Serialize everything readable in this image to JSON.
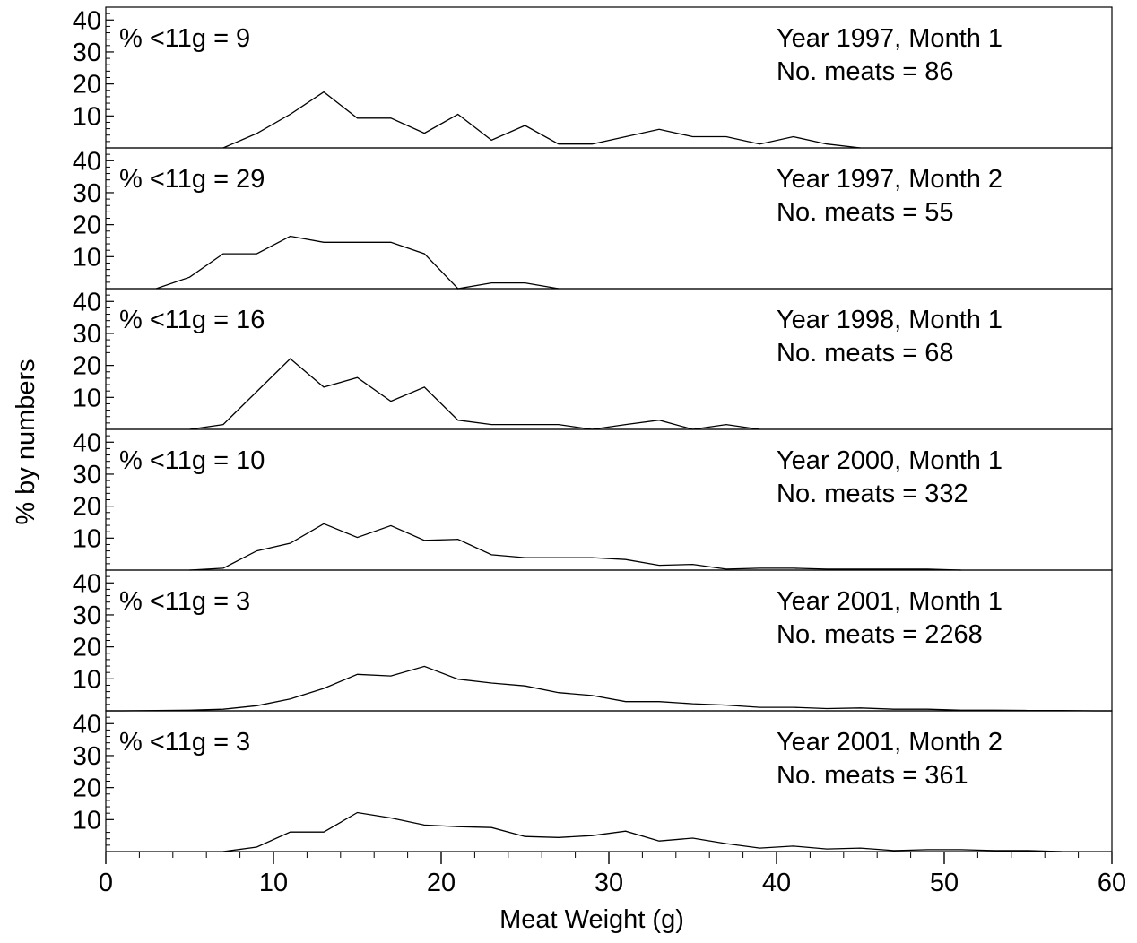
{
  "chart_data": {
    "type": "line",
    "title": "",
    "xlabel": "Meat Weight (g)",
    "ylabel": "% by numbers",
    "xlim": [
      0,
      60
    ],
    "xticks": [
      0,
      10,
      20,
      30,
      40,
      50,
      60
    ],
    "ylim": [
      0,
      44
    ],
    "yticks": [
      10,
      20,
      30,
      40
    ],
    "grid": false,
    "legend": "none",
    "line_color": "#000000",
    "x": [
      0,
      1,
      3,
      5,
      7,
      9,
      11,
      13,
      15,
      17,
      19,
      21,
      23,
      25,
      27,
      29,
      31,
      33,
      35,
      37,
      39,
      41,
      43,
      45,
      47,
      49,
      51,
      53,
      55,
      57,
      59,
      60
    ],
    "panels": [
      {
        "left_label": "% <11g = 9",
        "right_label_1": "Year 1997, Month 1",
        "right_label_2": "No. meats = 86",
        "values": [
          null,
          null,
          null,
          null,
          0,
          4.5,
          10.5,
          17.5,
          9.3,
          9.3,
          4.6,
          10.5,
          2.4,
          7,
          1.2,
          1.2,
          3.5,
          5.8,
          3.5,
          3.5,
          1.2,
          3.5,
          1.2,
          0,
          null,
          null,
          null,
          null,
          null,
          null,
          null,
          null
        ]
      },
      {
        "left_label": "% <11g = 29",
        "right_label_1": "Year 1997, Month 2",
        "right_label_2": "No. meats = 55",
        "values": [
          null,
          null,
          0,
          3.6,
          10.9,
          10.9,
          16.4,
          14.5,
          14.5,
          14.5,
          10.9,
          0,
          1.8,
          1.8,
          0,
          null,
          null,
          null,
          null,
          null,
          null,
          null,
          null,
          null,
          null,
          null,
          null,
          null,
          null,
          null,
          null,
          null
        ]
      },
      {
        "left_label": "% <11g = 16",
        "right_label_1": "Year 1998, Month 1",
        "right_label_2": "No. meats = 68",
        "values": [
          null,
          null,
          null,
          0,
          1.5,
          11.8,
          22.1,
          13.2,
          16.2,
          8.8,
          13.2,
          2.9,
          1.5,
          1.5,
          1.5,
          0,
          1.5,
          2.9,
          0,
          1.5,
          0,
          null,
          null,
          null,
          null,
          null,
          null,
          null,
          null,
          null,
          null,
          null
        ]
      },
      {
        "left_label": "% <11g = 10",
        "right_label_1": "Year 2000, Month 1",
        "right_label_2": "No. meats = 332",
        "values": [
          null,
          null,
          null,
          0,
          0.6,
          6,
          8.4,
          14.5,
          10.2,
          13.9,
          9.3,
          9.6,
          4.8,
          3.9,
          3.9,
          3.9,
          3.3,
          1.5,
          1.8,
          0.3,
          0.6,
          0.6,
          0.3,
          0.3,
          0.3,
          0.3,
          0,
          null,
          null,
          null,
          null,
          null
        ]
      },
      {
        "left_label": "% <11g = 3",
        "right_label_1": "Year 2001, Month 1",
        "right_label_2": "No. meats = 2268",
        "values": [
          0,
          0,
          0.1,
          0.2,
          0.5,
          1.6,
          3.7,
          7,
          11.4,
          10.9,
          13.9,
          9.9,
          8.7,
          7.8,
          5.7,
          4.8,
          2.9,
          2.9,
          2.2,
          1.8,
          1.1,
          1.1,
          0.7,
          0.9,
          0.5,
          0.5,
          0.2,
          0.2,
          0.1,
          0.1,
          0,
          0
        ]
      },
      {
        "left_label": "% <11g = 3",
        "right_label_1": "Year 2001, Month 2",
        "right_label_2": "No. meats = 361",
        "values": [
          null,
          null,
          null,
          null,
          0,
          1.4,
          6.1,
          6.1,
          12.2,
          10.5,
          8.3,
          7.8,
          7.5,
          4.7,
          4.4,
          5,
          6.4,
          3.3,
          4.2,
          2.5,
          1.1,
          1.7,
          0.8,
          1.1,
          0.3,
          0.6,
          0.6,
          0.3,
          0.3,
          0,
          null,
          null
        ]
      }
    ]
  }
}
